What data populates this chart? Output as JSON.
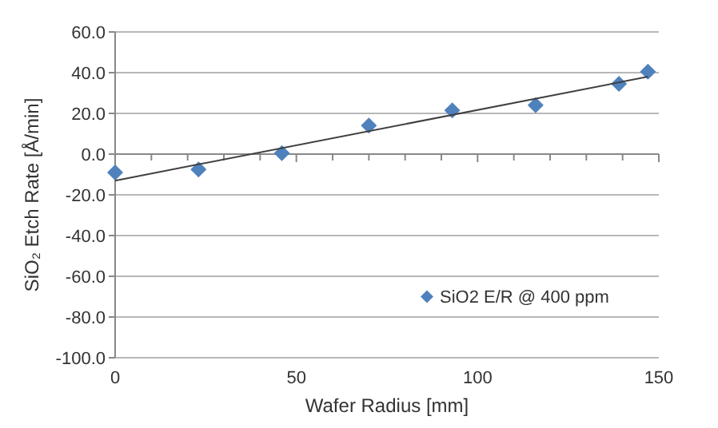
{
  "chart_data": {
    "type": "scatter",
    "xlabel": "Wafer Radius [mm]",
    "ylabel": "SiO₂ Etch Rate [Å/min]",
    "series": [
      {
        "name": "SiO2 E/R @ 400 ppm",
        "color": "#4f81bd",
        "marker": "diamond",
        "x": [
          0,
          23,
          46,
          70,
          93,
          116,
          139,
          147
        ],
        "values": [
          -9,
          -7.5,
          0.5,
          14,
          21.5,
          24,
          34.5,
          40.5
        ]
      },
      {
        "type": "line",
        "color": "#404040",
        "marker": "none",
        "x": [
          0,
          147
        ],
        "values": [
          -13,
          38
        ]
      }
    ],
    "xlim": [
      0,
      150
    ],
    "xticks": [
      0,
      {
        "value": 10,
        "label": null
      },
      {
        "value": 20,
        "label": null
      },
      {
        "value": 30,
        "label": null
      },
      {
        "value": 40,
        "label": null
      },
      50,
      {
        "value": 60,
        "label": null
      },
      {
        "value": 70,
        "label": null
      },
      {
        "value": 80,
        "label": null
      },
      {
        "value": 90,
        "label": null
      },
      100,
      {
        "value": 110,
        "label": null
      },
      {
        "value": 120,
        "label": null
      },
      {
        "value": 130,
        "label": null
      },
      {
        "value": 140,
        "label": null
      },
      150
    ],
    "ylim": [
      -100,
      60
    ],
    "yticks": [
      {
        "value": -100,
        "label": "-100.0"
      },
      {
        "value": -80,
        "label": "-80.0"
      },
      {
        "value": -60,
        "label": "-60.0"
      },
      {
        "value": -40,
        "label": "-40.0"
      },
      {
        "value": -20,
        "label": "-20.0"
      },
      {
        "value": 0,
        "label": "0.0"
      },
      {
        "value": 20,
        "label": "20.0"
      },
      {
        "value": 40,
        "label": "40.0"
      },
      {
        "value": 60,
        "label": "60.0"
      }
    ],
    "grid": "y",
    "legend": "bottom right"
  }
}
